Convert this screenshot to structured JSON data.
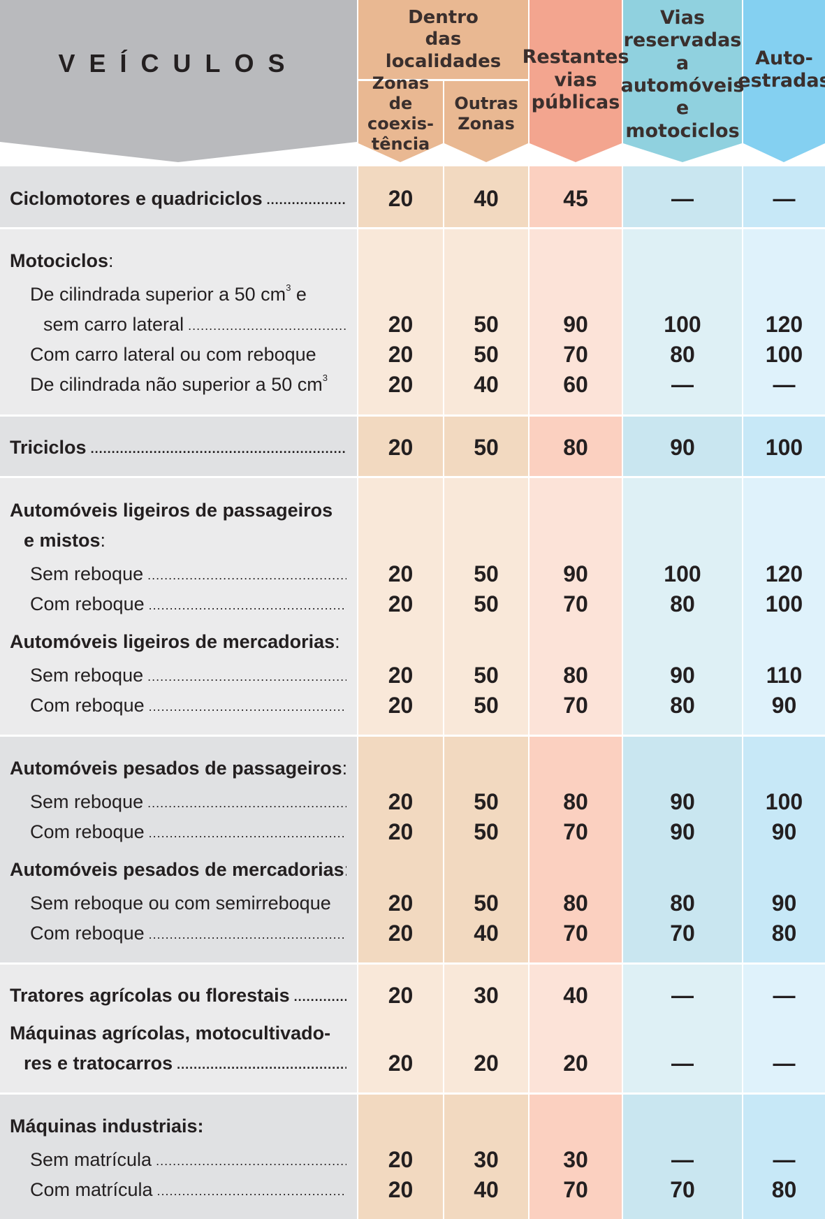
{
  "header": {
    "vehicles_title": "VEÍCULOS",
    "dentro_group": [
      "Dentro",
      "das",
      "localidades"
    ],
    "columns": [
      {
        "id": "coexistencia",
        "lines": [
          "Zonas de",
          "coexis-",
          "tência"
        ]
      },
      {
        "id": "outras",
        "lines": [
          "Outras",
          "Zonas"
        ]
      },
      {
        "id": "restantes",
        "lines": [
          "Restantes",
          "vias",
          "públicas"
        ]
      },
      {
        "id": "vias_reservadas",
        "lines": [
          "Vias",
          "reservadas a",
          "automóveis",
          "e motociclos"
        ]
      },
      {
        "id": "autoestradas",
        "lines": [
          "Auto-",
          "estradas"
        ]
      }
    ]
  },
  "colors": {
    "label_band": [
      "#e0e1e3",
      "#ebebec"
    ],
    "coexistencia": [
      "#f2d9c0",
      "#f9e8d9"
    ],
    "outras": [
      "#f2d9c0",
      "#f9e8d9"
    ],
    "restantes": [
      "#fbd0c0",
      "#fce3d8"
    ],
    "vias_reservadas": [
      "#c9e6f0",
      "#def0f5"
    ],
    "autoestradas": [
      "#c7e8f7",
      "#dff2fb"
    ],
    "header_gray": "#b9babd",
    "header_orange": "#e9b892",
    "header_salmon": "#f3a58f",
    "header_teal": "#90d1df",
    "header_blue": "#84d0f1"
  },
  "groups": [
    {
      "rows": [
        {
          "label": "Ciclomotores e quadriciclos",
          "bold": true,
          "dots": true,
          "values": [
            "20",
            "40",
            "45",
            "—",
            "—"
          ]
        }
      ]
    },
    {
      "rows": [
        {
          "label": "Motociclos",
          "suffix": ":",
          "bold": true
        },
        {
          "label": "De cilindrada superior a 50 cm",
          "sup": "3",
          "suffix": " e",
          "indent": 1
        },
        {
          "label": "sem carro lateral",
          "indent": 2,
          "dots": true,
          "values": [
            "20",
            "50",
            "90",
            "100",
            "120"
          ]
        },
        {
          "label": "Com carro lateral ou com reboque",
          "indent": 1,
          "values": [
            "20",
            "50",
            "70",
            "80",
            "100"
          ]
        },
        {
          "label": "De cilindrada não superior a 50 cm",
          "sup": "3",
          "indent": 1,
          "values": [
            "20",
            "40",
            "60",
            "—",
            "—"
          ]
        }
      ]
    },
    {
      "rows": [
        {
          "label": "Triciclos",
          "bold": true,
          "dots": true,
          "values": [
            "20",
            "50",
            "80",
            "90",
            "100"
          ]
        }
      ]
    },
    {
      "rows": [
        {
          "label": "Automóveis ligeiros de passageiros",
          "bold": true
        },
        {
          "label": "e mistos",
          "suffix": ":",
          "bold": true,
          "indent": 3
        },
        {
          "label": "Sem reboque",
          "indent": 1,
          "dots": true,
          "values": [
            "20",
            "50",
            "90",
            "100",
            "120"
          ]
        },
        {
          "label": "Com reboque",
          "indent": 1,
          "dots": true,
          "values": [
            "20",
            "50",
            "70",
            "80",
            "100"
          ]
        },
        {
          "label": "Automóveis ligeiros de mercadorias",
          "suffix": ":",
          "bold": true
        },
        {
          "label": "Sem reboque",
          "indent": 1,
          "dots": true,
          "values": [
            "20",
            "50",
            "80",
            "90",
            "110"
          ]
        },
        {
          "label": "Com reboque",
          "indent": 1,
          "dots": true,
          "values": [
            "20",
            "50",
            "70",
            "80",
            "90"
          ]
        }
      ]
    },
    {
      "rows": [
        {
          "label": "Automóveis pesados de passageiros",
          "suffix": ":",
          "bold": true
        },
        {
          "label": "Sem reboque",
          "indent": 1,
          "dots": true,
          "values": [
            "20",
            "50",
            "80",
            "90",
            "100"
          ]
        },
        {
          "label": "Com reboque",
          "indent": 1,
          "dots": true,
          "values": [
            "20",
            "50",
            "70",
            "90",
            "90"
          ]
        },
        {
          "label": "Automóveis pesados de mercadorias",
          "suffix": ":",
          "bold": true
        },
        {
          "label": "Sem reboque ou com semirreboque",
          "indent": 1,
          "values": [
            "20",
            "50",
            "80",
            "80",
            "90"
          ]
        },
        {
          "label": "Com reboque",
          "indent": 1,
          "dots": true,
          "values": [
            "20",
            "40",
            "70",
            "70",
            "80"
          ]
        }
      ]
    },
    {
      "rows": [
        {
          "label": "Tratores agrícolas ou florestais",
          "bold": true,
          "dots": true,
          "values": [
            "20",
            "30",
            "40",
            "—",
            "—"
          ]
        },
        {
          "label": "Máquinas agrícolas, motocultivado-",
          "bold": true
        },
        {
          "label": "res e tratocarros",
          "bold": true,
          "indent": 3,
          "dots": true,
          "values": [
            "20",
            "20",
            "20",
            "—",
            "—"
          ]
        }
      ]
    },
    {
      "rows": [
        {
          "label": "Máquinas industriais:",
          "bold": true
        },
        {
          "label": "Sem matrícula",
          "indent": 1,
          "dots": true,
          "values": [
            "20",
            "30",
            "30",
            "—",
            "—"
          ]
        },
        {
          "label": "Com matrícula",
          "indent": 1,
          "dots": true,
          "values": [
            "20",
            "40",
            "70",
            "70",
            "80"
          ]
        }
      ]
    }
  ]
}
